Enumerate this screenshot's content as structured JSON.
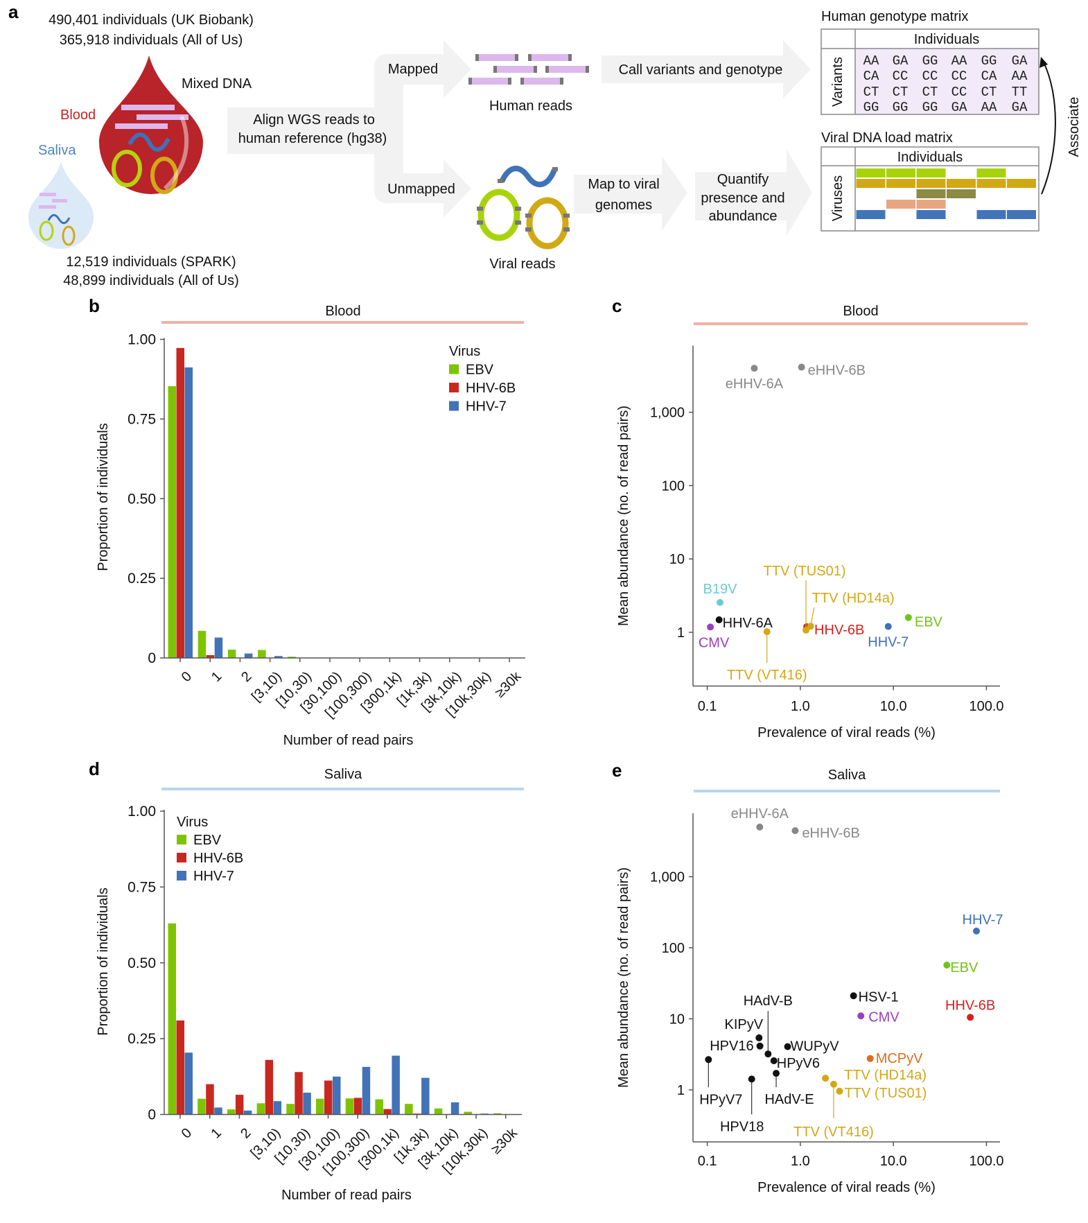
{
  "panel_a": {
    "panel_letter": "a",
    "blood_cohorts": [
      "490,401 individuals (UK Biobank)",
      "365,918 individuals (All of Us)"
    ],
    "saliva_cohorts": [
      "12,519 individuals (SPARK)",
      "48,899 individuals (All of Us)"
    ],
    "mixed_dna": "Mixed DNA",
    "blood_label": "Blood",
    "saliva_label": "Saliva",
    "align_step": [
      "Align WGS reads to",
      "human reference (hg38)"
    ],
    "mapped": "Mapped",
    "unmapped": "Unmapped",
    "human_reads": "Human reads",
    "viral_reads": "Viral reads",
    "call_variants": "Call variants and genotype",
    "map_viral": [
      "Map to viral",
      "genomes"
    ],
    "quantify": [
      "Quantify",
      "presence and",
      "abundance"
    ],
    "genotype_matrix": {
      "title": "Human genotype matrix",
      "col_header": "Individuals",
      "row_header": "Variants",
      "rows": [
        [
          "AA",
          "GA",
          "GG",
          "AA",
          "GG",
          "GA"
        ],
        [
          "CA",
          "CC",
          "CC",
          "CC",
          "CA",
          "AA"
        ],
        [
          "CT",
          "CT",
          "CT",
          "CC",
          "CT",
          "TT"
        ],
        [
          "GG",
          "GG",
          "GG",
          "GA",
          "AA",
          "GA"
        ]
      ]
    },
    "viral_matrix": {
      "title": "Viral DNA load matrix",
      "col_header": "Individuals",
      "row_header": "Viruses",
      "rows": [
        {
          "color": "#a8d30a",
          "present": [
            1,
            1,
            1,
            0,
            1,
            0
          ]
        },
        {
          "color": "#d1a914",
          "present": [
            1,
            1,
            1,
            1,
            1,
            1
          ]
        },
        {
          "color": "#8c8a44",
          "present": [
            0,
            0,
            1,
            1,
            0,
            0
          ]
        },
        {
          "color": "#e8a582",
          "present": [
            0,
            1,
            1,
            0,
            0,
            0
          ]
        },
        {
          "color": "#4274b9",
          "present": [
            1,
            0,
            1,
            0,
            1,
            1
          ]
        }
      ]
    },
    "associate": "Associate",
    "colors": {
      "blood": "#b9232a",
      "saliva_text": "#4a86c5",
      "blood_text": "#cc2222",
      "read_pink": "#dcb8ec",
      "arrow_gray": "#f2f2f2"
    }
  },
  "chart_data": [
    {
      "panel": "b",
      "type": "bar",
      "title": "Blood",
      "header_color": "#f0b1a3",
      "xlabel": "Number of read pairs",
      "ylabel": "Proportion of individuals",
      "ylim": [
        0,
        1
      ],
      "yticks": [
        {
          "v": 0,
          "label": "0"
        },
        {
          "v": 0.25,
          "label": "0.25"
        },
        {
          "v": 0.5,
          "label": "0.50"
        },
        {
          "v": 0.75,
          "label": "0.75"
        },
        {
          "v": 1,
          "label": "1.00"
        }
      ],
      "categories": [
        "0",
        "1",
        "2",
        "[3,10)",
        "[10,30)",
        "[30,100)",
        "[100,300)",
        "[300,1k)",
        "[1k,3k)",
        "[3k,10k)",
        "[10k,30k)",
        "≥30k"
      ],
      "legend_title": "Virus",
      "legend_placement": "top-right",
      "grid": false,
      "series": [
        {
          "name": "EBV",
          "color": "#7dc400",
          "values": [
            0.853,
            0.085,
            0.026,
            0.025,
            0.004,
            0.001,
            0,
            0,
            0,
            0,
            0,
            0
          ]
        },
        {
          "name": "HHV-6B",
          "color": "#c9281f",
          "values": [
            0.973,
            0.009,
            0.001,
            0,
            0,
            0,
            0,
            0,
            0,
            0,
            0,
            0
          ]
        },
        {
          "name": "HHV-7",
          "color": "#4273b8",
          "values": [
            0.912,
            0.064,
            0.014,
            0.006,
            0.001,
            0,
            0,
            0,
            0,
            0,
            0,
            0
          ]
        }
      ]
    },
    {
      "panel": "c",
      "type": "scatter",
      "title": "Blood",
      "header_color": "#f0b1a3",
      "xlabel": "Prevalence of viral reads (%)",
      "ylabel": "Mean abundance (no. of read pairs)",
      "xscale": "log",
      "yscale": "log",
      "xlim": [
        0.07,
        137
      ],
      "ylim": [
        0.19,
        8100
      ],
      "xticks": [
        {
          "v": 0.1,
          "label": "0.1"
        },
        {
          "v": 1,
          "label": "1.0"
        },
        {
          "v": 10,
          "label": "10.0"
        },
        {
          "v": 100,
          "label": "100.0"
        }
      ],
      "yticks": [
        {
          "v": 1,
          "label": "1"
        },
        {
          "v": 10,
          "label": "10"
        },
        {
          "v": 100,
          "label": "100"
        },
        {
          "v": 1000,
          "label": "1,000"
        }
      ],
      "grid": false,
      "points": [
        {
          "label": "eHHV-6A",
          "x": 0.32,
          "y": 3980,
          "color": "#888888"
        },
        {
          "label": "eHHV-6B",
          "x": 1.03,
          "y": 4120,
          "color": "#888888"
        },
        {
          "label": "B19V",
          "x": 0.137,
          "y": 2.55,
          "color": "#6acbd6"
        },
        {
          "label": "HHV-6A",
          "x": 0.134,
          "y": 1.48,
          "color": "#111111"
        },
        {
          "label": "CMV",
          "x": 0.108,
          "y": 1.18,
          "color": "#9b3fc0"
        },
        {
          "label": "TTV (VT416)",
          "x": 0.438,
          "y": 1.02,
          "color": "#d4a716"
        },
        {
          "label": "HHV-6B",
          "x": 1.17,
          "y": 1.19,
          "color": "#d2231f"
        },
        {
          "label": "TTV (TUS01)",
          "x": 1.15,
          "y": 1.07,
          "color": "#d4a716"
        },
        {
          "label": "TTV (HD14a)",
          "x": 1.29,
          "y": 1.21,
          "color": "#d4a716"
        },
        {
          "label": "HHV-7",
          "x": 8.8,
          "y": 1.2,
          "color": "#3f72b8"
        },
        {
          "label": "EBV",
          "x": 14.5,
          "y": 1.59,
          "color": "#72c417"
        }
      ]
    },
    {
      "panel": "d",
      "type": "bar",
      "title": "Saliva",
      "header_color": "#b9d5ef",
      "xlabel": "Number of read pairs",
      "ylabel": "Proportion of individuals",
      "ylim": [
        0,
        1
      ],
      "yticks": [
        {
          "v": 0,
          "label": "0"
        },
        {
          "v": 0.25,
          "label": "0.25"
        },
        {
          "v": 0.5,
          "label": "0.50"
        },
        {
          "v": 0.75,
          "label": "0.75"
        },
        {
          "v": 1,
          "label": "1.00"
        }
      ],
      "categories": [
        "0",
        "1",
        "2",
        "[3,10)",
        "[10,30)",
        "[30,100)",
        "[100,300)",
        "[300,1k)",
        "[1k,3k)",
        "[3k,10k)",
        "[10k,30k)",
        "≥30k"
      ],
      "legend_title": "Virus",
      "legend_placement": "top-left",
      "grid": false,
      "series": [
        {
          "name": "EBV",
          "color": "#7dc400",
          "values": [
            0.63,
            0.052,
            0.017,
            0.037,
            0.035,
            0.052,
            0.053,
            0.05,
            0.035,
            0.02,
            0.009,
            0.004
          ]
        },
        {
          "name": "HHV-6B",
          "color": "#c9281f",
          "values": [
            0.31,
            0.1,
            0.065,
            0.18,
            0.14,
            0.112,
            0.055,
            0.018,
            0.003,
            0,
            0,
            0
          ]
        },
        {
          "name": "HHV-7",
          "color": "#4273b8",
          "values": [
            0.204,
            0.023,
            0.013,
            0.044,
            0.072,
            0.125,
            0.157,
            0.194,
            0.121,
            0.04,
            0.003,
            0
          ]
        }
      ]
    },
    {
      "panel": "e",
      "type": "scatter",
      "title": "Saliva",
      "header_color": "#b9d5ef",
      "xlabel": "Prevalence of viral reads (%)",
      "ylabel": "Mean abundance (no. of read pairs)",
      "xscale": "log",
      "yscale": "log",
      "xlim": [
        0.07,
        137
      ],
      "ylim": [
        0.19,
        7800
      ],
      "xticks": [
        {
          "v": 0.1,
          "label": "0.1"
        },
        {
          "v": 1,
          "label": "1.0"
        },
        {
          "v": 10,
          "label": "10.0"
        },
        {
          "v": 100,
          "label": "100.0"
        }
      ],
      "yticks": [
        {
          "v": 1,
          "label": "1"
        },
        {
          "v": 10,
          "label": "10"
        },
        {
          "v": 100,
          "label": "100"
        },
        {
          "v": 1000,
          "label": "1,000"
        }
      ],
      "grid": false,
      "points": [
        {
          "label": "eHHV-6A",
          "x": 0.366,
          "y": 5000,
          "color": "#888888"
        },
        {
          "label": "eHHV-6B",
          "x": 0.88,
          "y": 4440,
          "color": "#888888"
        },
        {
          "label": "HHV-7",
          "x": 78,
          "y": 172,
          "color": "#3f72b8"
        },
        {
          "label": "EBV",
          "x": 37.5,
          "y": 57,
          "color": "#72c417"
        },
        {
          "label": "HHV-6B",
          "x": 67,
          "y": 10.5,
          "color": "#d2231f"
        },
        {
          "label": "HSV-1",
          "x": 3.73,
          "y": 21.1,
          "color": "#111111"
        },
        {
          "label": "CMV",
          "x": 4.47,
          "y": 11,
          "color": "#9b3fc0"
        },
        {
          "label": "MCPyV",
          "x": 5.63,
          "y": 2.76,
          "color": "#e06c1a"
        },
        {
          "label": "TTV (HD14a)",
          "x": 1.86,
          "y": 1.46,
          "color": "#d4a716"
        },
        {
          "label": "TTV (VT416)",
          "x": 2.28,
          "y": 1.2,
          "color": "#d4a716"
        },
        {
          "label": "TTV (TUS01)",
          "x": 2.64,
          "y": 0.96,
          "color": "#d4a716"
        },
        {
          "label": "WUPyV",
          "x": 0.73,
          "y": 4.06,
          "color": "#111111"
        },
        {
          "label": "HPyV6",
          "x": 0.52,
          "y": 2.57,
          "color": "#111111"
        },
        {
          "label": "HAdV-B",
          "x": 0.45,
          "y": 3.2,
          "color": "#111111"
        },
        {
          "label": "KIPyV",
          "x": 0.36,
          "y": 5.4,
          "color": "#111111"
        },
        {
          "label": "HPV16",
          "x": 0.368,
          "y": 4.14,
          "color": "#111111"
        },
        {
          "label": "HPyV7",
          "x": 0.103,
          "y": 2.67,
          "color": "#111111"
        },
        {
          "label": "HPV18",
          "x": 0.3,
          "y": 1.42,
          "color": "#111111"
        },
        {
          "label": "HAdV-E",
          "x": 0.55,
          "y": 1.71,
          "color": "#111111"
        }
      ]
    }
  ]
}
